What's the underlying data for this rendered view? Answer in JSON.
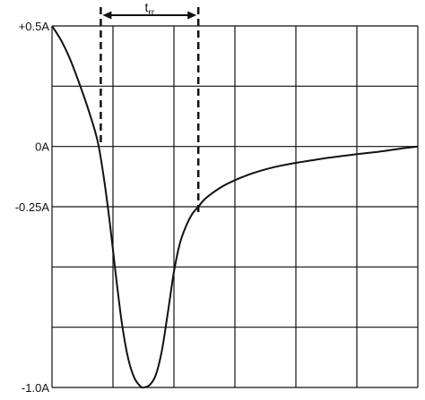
{
  "chart_data": {
    "type": "line",
    "title": "",
    "xlabel": "",
    "ylabel": "",
    "ylim": [
      -1.0,
      0.5
    ],
    "xlim": [
      0,
      12
    ],
    "grid": true,
    "y_ticks": [
      {
        "value": 0.5,
        "label": "+0.5A"
      },
      {
        "value": 0.0,
        "label": "0A"
      },
      {
        "value": -0.25,
        "label": "-0.25A"
      },
      {
        "value": -1.0,
        "label": "-1.0A"
      }
    ],
    "series": [
      {
        "x": [
          0,
          0.3,
          0.6,
          0.9,
          1.2,
          1.5,
          1.7,
          1.9,
          2.1,
          2.3,
          2.5,
          2.7,
          2.9,
          3.0,
          3.2,
          3.4,
          3.6,
          3.8,
          4.0,
          4.2,
          4.4,
          4.6,
          4.8,
          5.0,
          5.3,
          5.6,
          6.0,
          6.5,
          7.0,
          7.5,
          8.0,
          8.5,
          9.0,
          9.5,
          10.0,
          10.5,
          11.0,
          11.5,
          12.0
        ],
        "y": [
          0.5,
          0.44,
          0.36,
          0.26,
          0.15,
          0.02,
          -0.13,
          -0.32,
          -0.54,
          -0.74,
          -0.88,
          -0.96,
          -0.995,
          -1.0,
          -0.99,
          -0.95,
          -0.85,
          -0.69,
          -0.52,
          -0.4,
          -0.33,
          -0.28,
          -0.25,
          -0.22,
          -0.19,
          -0.165,
          -0.14,
          -0.115,
          -0.095,
          -0.08,
          -0.068,
          -0.058,
          -0.048,
          -0.04,
          -0.032,
          -0.025,
          -0.017,
          -0.008,
          0.0
        ]
      }
    ],
    "annotations": [
      {
        "text": "t",
        "subscript": "rr",
        "x_start": 1.6,
        "x_end": 4.8
      }
    ]
  }
}
